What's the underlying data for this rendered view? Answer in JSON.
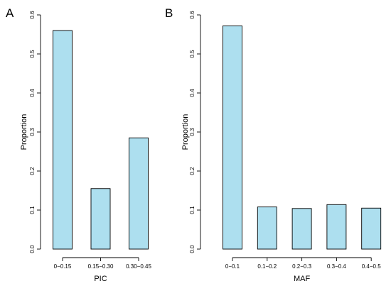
{
  "chart_data": [
    {
      "type": "bar",
      "panel_label": "A",
      "categories": [
        "0−0.15",
        "0.15−0.30",
        "0.30−0.45"
      ],
      "values": [
        0.56,
        0.155,
        0.285
      ],
      "xlabel": "PIC",
      "ylabel": "Proportion",
      "ylim": [
        0,
        0.6
      ],
      "yticks": [
        "0.0",
        "0.1",
        "0.2",
        "0.3",
        "0.4",
        "0.5",
        "0.6"
      ],
      "bar_color": "#ADDFEF",
      "grid": false
    },
    {
      "type": "bar",
      "panel_label": "B",
      "categories": [
        "0−0.1",
        "0.1−0.2",
        "0.2−0.3",
        "0.3−0.4",
        "0.4−0.5"
      ],
      "values": [
        0.572,
        0.108,
        0.104,
        0.114,
        0.105
      ],
      "xlabel": "MAF",
      "ylabel": "Proportion",
      "ylim": [
        0,
        0.6
      ],
      "yticks": [
        "0.0",
        "0.1",
        "0.2",
        "0.3",
        "0.4",
        "0.5",
        "0.6"
      ],
      "bar_color": "#ADDFEF",
      "grid": false
    }
  ]
}
